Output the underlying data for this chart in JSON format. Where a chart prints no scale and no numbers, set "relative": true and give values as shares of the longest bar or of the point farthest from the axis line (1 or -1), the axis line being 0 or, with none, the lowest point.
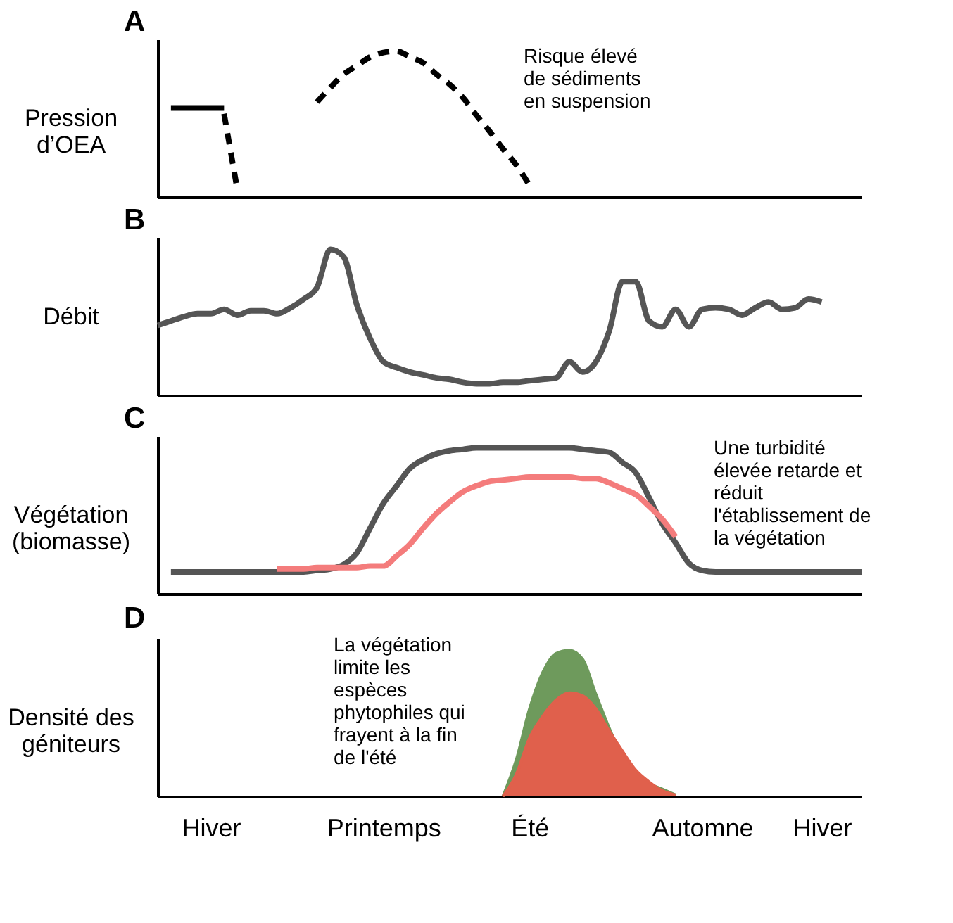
{
  "chart_data": [
    {
      "type": "line",
      "title": "A",
      "ylabel": "Pression\nd’OEA",
      "relative": true,
      "tick_labels": false,
      "legend": false,
      "grid": false,
      "marker": "none",
      "annotations": [
        "Risque élevé\nde sédiments\nen suspension"
      ],
      "categories": [
        null,
        null,
        null,
        null,
        null,
        null,
        null,
        null,
        null,
        null,
        null,
        null,
        null,
        null,
        null,
        null,
        null,
        null,
        null,
        null,
        null,
        null,
        null,
        null,
        null,
        null,
        null,
        null,
        null,
        null,
        null,
        null,
        null,
        null,
        null,
        null,
        null,
        null,
        null,
        null,
        null,
        null,
        null,
        null,
        null,
        null,
        null,
        null,
        null,
        null,
        null,
        null,
        null,
        null
      ],
      "series": [
        {
          "color": "#000000",
          "line_style": "solid",
          "values": [
            null,
            0.61,
            0.61,
            0.61,
            0.61,
            0.61,
            null,
            null,
            null,
            null,
            null,
            null,
            null,
            null,
            null,
            null,
            null,
            null,
            null,
            null,
            null,
            null,
            null,
            null,
            null,
            null,
            null,
            null,
            null,
            null,
            null,
            null,
            null,
            null,
            null,
            null,
            null,
            null,
            null,
            null,
            null,
            null,
            null,
            null,
            null,
            null,
            null,
            null,
            null,
            null,
            null,
            null,
            null,
            null
          ]
        },
        {
          "color": "#000000",
          "line_style": "dashed",
          "values": [
            null,
            null,
            null,
            null,
            null,
            0.57,
            0.05,
            null,
            null,
            null,
            null,
            null,
            null,
            null,
            null,
            null,
            null,
            null,
            null,
            null,
            null,
            null,
            null,
            null,
            null,
            null,
            null,
            null,
            null,
            null,
            null,
            null,
            null,
            null,
            null,
            null,
            null,
            null,
            null,
            null,
            null,
            null,
            null,
            null,
            null,
            null,
            null,
            null,
            null,
            null,
            null,
            null,
            null,
            null
          ]
        },
        {
          "color": "#000000",
          "line_style": "dashed",
          "values": [
            null,
            null,
            null,
            null,
            null,
            null,
            null,
            null,
            null,
            null,
            null,
            null,
            0.65,
            0.75,
            0.84,
            0.9,
            0.96,
            0.99,
            1.0,
            0.96,
            0.92,
            0.84,
            0.77,
            0.68,
            0.56,
            0.45,
            0.33,
            0.22,
            0.08,
            null,
            null,
            null,
            null,
            null,
            null,
            null,
            null,
            null,
            null,
            null,
            null,
            null,
            null,
            null,
            null,
            null,
            null,
            null,
            null,
            null,
            null,
            null,
            null,
            null
          ]
        }
      ]
    },
    {
      "type": "line",
      "title": "B",
      "ylabel": "Débit",
      "relative": true,
      "tick_labels": false,
      "legend": false,
      "grid": false,
      "marker": "none",
      "categories": [
        null,
        null,
        null,
        null,
        null,
        null,
        null,
        null,
        null,
        null,
        null,
        null,
        null,
        null,
        null,
        null,
        null,
        null,
        null,
        null,
        null,
        null,
        null,
        null,
        null,
        null,
        null,
        null,
        null,
        null,
        null,
        null,
        null,
        null,
        null,
        null,
        null,
        null,
        null,
        null,
        null,
        null,
        null,
        null,
        null,
        null,
        null,
        null,
        null,
        null,
        null,
        null,
        null,
        null
      ],
      "series": [
        {
          "color": "#555555",
          "line_style": "solid",
          "values": [
            0.48,
            0.51,
            0.54,
            0.56,
            0.56,
            0.59,
            0.55,
            0.58,
            0.58,
            0.56,
            0.6,
            0.66,
            0.74,
            1.0,
            0.95,
            0.62,
            0.39,
            0.23,
            0.19,
            0.16,
            0.14,
            0.12,
            0.11,
            0.09,
            0.08,
            0.08,
            0.09,
            0.09,
            0.1,
            0.11,
            0.12,
            0.23,
            0.16,
            0.23,
            0.44,
            0.78,
            0.78,
            0.51,
            0.47,
            0.59,
            0.47,
            0.59,
            0.6,
            0.59,
            0.55,
            0.6,
            0.64,
            0.59,
            0.6,
            0.66,
            0.64,
            null,
            null,
            null
          ]
        }
      ]
    },
    {
      "type": "line",
      "title": "C",
      "ylabel": "Végétation\n(biomasse)",
      "relative": true,
      "tick_labels": false,
      "legend": false,
      "grid": false,
      "marker": "none",
      "annotations": [
        "Une turbidité\nélevée retarde et\nréduit\nl'établissement de\nla végétation"
      ],
      "categories": [
        null,
        null,
        null,
        null,
        null,
        null,
        null,
        null,
        null,
        null,
        null,
        null,
        null,
        null,
        null,
        null,
        null,
        null,
        null,
        null,
        null,
        null,
        null,
        null,
        null,
        null,
        null,
        null,
        null,
        null,
        null,
        null,
        null,
        null,
        null,
        null,
        null,
        null,
        null,
        null,
        null,
        null,
        null,
        null,
        null,
        null,
        null,
        null,
        null,
        null,
        null,
        null,
        null,
        null
      ],
      "series": [
        {
          "color": "#555555",
          "line_style": "solid",
          "values": [
            null,
            0.15,
            0.15,
            0.15,
            0.15,
            0.15,
            0.15,
            0.15,
            0.15,
            0.15,
            0.15,
            0.15,
            0.16,
            0.17,
            0.2,
            0.28,
            0.45,
            0.62,
            0.74,
            0.86,
            0.92,
            0.96,
            0.98,
            0.99,
            1.0,
            1.0,
            1.0,
            1.0,
            1.0,
            1.0,
            1.0,
            1.0,
            0.99,
            0.98,
            0.97,
            0.9,
            0.83,
            0.66,
            0.48,
            0.35,
            0.21,
            0.16,
            0.15,
            0.15,
            0.15,
            0.15,
            0.15,
            0.15,
            0.15,
            0.15,
            0.15,
            0.15,
            0.15,
            0.15
          ]
        },
        {
          "color": "#f47c7c",
          "line_style": "solid",
          "values": [
            null,
            null,
            null,
            null,
            null,
            null,
            null,
            null,
            null,
            0.17,
            0.17,
            0.17,
            0.18,
            0.18,
            0.18,
            0.18,
            0.19,
            0.19,
            0.26,
            0.34,
            0.45,
            0.55,
            0.63,
            0.7,
            0.74,
            0.77,
            0.78,
            0.79,
            0.8,
            0.8,
            0.8,
            0.8,
            0.79,
            0.79,
            0.76,
            0.72,
            0.68,
            0.6,
            0.51,
            0.39,
            null,
            null,
            null,
            null,
            null,
            null,
            null,
            null,
            null,
            null,
            null,
            null,
            null,
            null
          ]
        }
      ]
    },
    {
      "type": "area",
      "title": "D",
      "ylabel": "Densité des\ngéniteurs",
      "relative": true,
      "tick_labels": "x",
      "legend": false,
      "grid": false,
      "marker": "none",
      "annotations": [
        "La végétation\nlimite les\nespèces\nphytophiles qui\nfrayent à la fin\nde l'été"
      ],
      "categories": [
        null,
        null,
        null,
        null,
        "Hiver",
        null,
        null,
        null,
        null,
        null,
        null,
        null,
        null,
        null,
        null,
        null,
        null,
        "Printemps",
        null,
        null,
        null,
        null,
        null,
        null,
        null,
        null,
        null,
        null,
        "Été",
        null,
        null,
        null,
        null,
        null,
        null,
        null,
        null,
        null,
        null,
        null,
        null,
        "Automne",
        null,
        null,
        null,
        null,
        null,
        null,
        null,
        null,
        "Hiver",
        null,
        null,
        null
      ],
      "series": [
        {
          "color": "#6e9a5c",
          "values": [
            null,
            null,
            null,
            null,
            null,
            null,
            null,
            null,
            null,
            null,
            null,
            null,
            null,
            null,
            null,
            null,
            null,
            null,
            null,
            null,
            null,
            null,
            null,
            null,
            null,
            null,
            0.0,
            0.25,
            0.6,
            0.85,
            0.98,
            1.0,
            0.94,
            0.7,
            0.47,
            0.27,
            0.17,
            0.09,
            0.05,
            0.01,
            null,
            null,
            null,
            null,
            null,
            null,
            null,
            null,
            null,
            null,
            null,
            null,
            null,
            null
          ]
        },
        {
          "color": "#e0604c",
          "values": [
            null,
            null,
            null,
            null,
            null,
            null,
            null,
            null,
            null,
            null,
            null,
            null,
            null,
            null,
            null,
            null,
            null,
            null,
            null,
            null,
            null,
            null,
            null,
            null,
            null,
            null,
            0.0,
            0.15,
            0.4,
            0.55,
            0.66,
            0.71,
            0.69,
            0.6,
            0.45,
            0.31,
            0.18,
            0.1,
            0.04,
            0.01,
            null,
            null,
            null,
            null,
            null,
            null,
            null,
            null,
            null,
            null,
            null,
            null,
            null,
            null
          ]
        }
      ]
    }
  ]
}
